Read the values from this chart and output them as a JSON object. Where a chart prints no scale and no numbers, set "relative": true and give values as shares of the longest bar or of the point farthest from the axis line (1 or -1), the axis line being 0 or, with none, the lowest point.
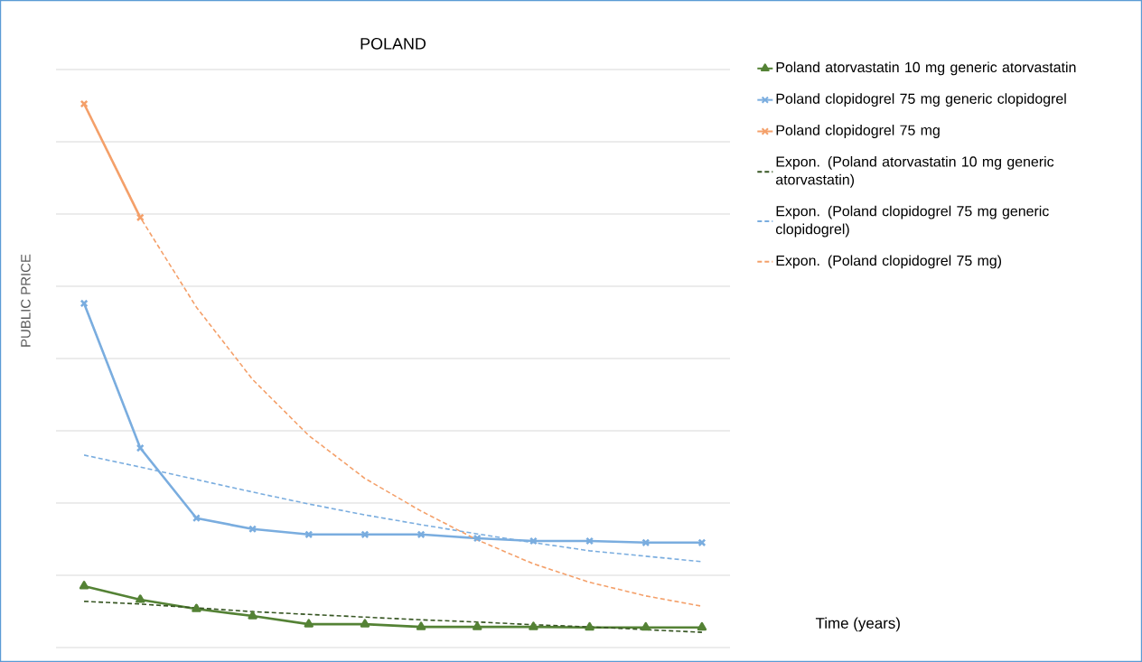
{
  "chart_data": {
    "type": "line",
    "title": "POLAND",
    "annotations": [
      "Time (years)"
    ],
    "ylabel": "PUBLIC PRICE",
    "relative": true,
    "grid": "y",
    "legend": "right",
    "categories": [
      null,
      null,
      null,
      null,
      null,
      null,
      null,
      null,
      null,
      null,
      null,
      null
    ],
    "series": [
      {
        "name": "Poland atorvastatin 10 mg generic atorvastatin",
        "color": "#548235",
        "marker": "triangle",
        "line_style": "solid",
        "values": [
          0.113,
          0.088,
          0.071,
          0.058,
          0.043,
          0.043,
          0.038,
          0.038,
          0.038,
          0.037,
          0.037,
          0.037
        ]
      },
      {
        "name": "Poland clopidogrel 75 mg generic clopidogrel",
        "color": "#7aaddf",
        "marker": "cross",
        "line_style": "solid",
        "values": [
          0.633,
          0.367,
          0.238,
          0.218,
          0.208,
          0.208,
          0.208,
          0.201,
          0.196,
          0.196,
          0.193,
          0.193
        ]
      },
      {
        "name": "Poland clopidogrel 75 mg",
        "color": "#f4a06a",
        "marker": "cross",
        "line_style": "solid",
        "values": [
          1.0,
          0.791,
          null,
          null,
          null,
          null,
          null,
          null,
          null,
          null,
          null,
          null
        ]
      },
      {
        "name": "Expon. (Poland atorvastatin 10 mg generic atorvastatin)",
        "color": "#375623",
        "marker": "none",
        "line_style": "dashed",
        "values": [
          0.085,
          0.08,
          0.073,
          0.066,
          0.061,
          0.056,
          0.051,
          0.047,
          0.042,
          0.038,
          0.033,
          0.028
        ]
      },
      {
        "name": "Expon. (Poland clopidogrel 75 mg generic clopidogrel)",
        "color": "#7aaddf",
        "marker": "none",
        "line_style": "dashed",
        "values": [
          0.354,
          0.332,
          0.309,
          0.286,
          0.264,
          0.244,
          0.226,
          0.209,
          0.193,
          0.178,
          0.168,
          0.158
        ]
      },
      {
        "name": "Expon. (Poland clopidogrel 75 mg)",
        "color": "#f4a06a",
        "marker": "none",
        "line_style": "dashed",
        "values": [
          1.0,
          0.791,
          0.626,
          0.493,
          0.39,
          0.311,
          0.251,
          0.198,
          0.154,
          0.12,
          0.095,
          0.076
        ]
      }
    ]
  }
}
